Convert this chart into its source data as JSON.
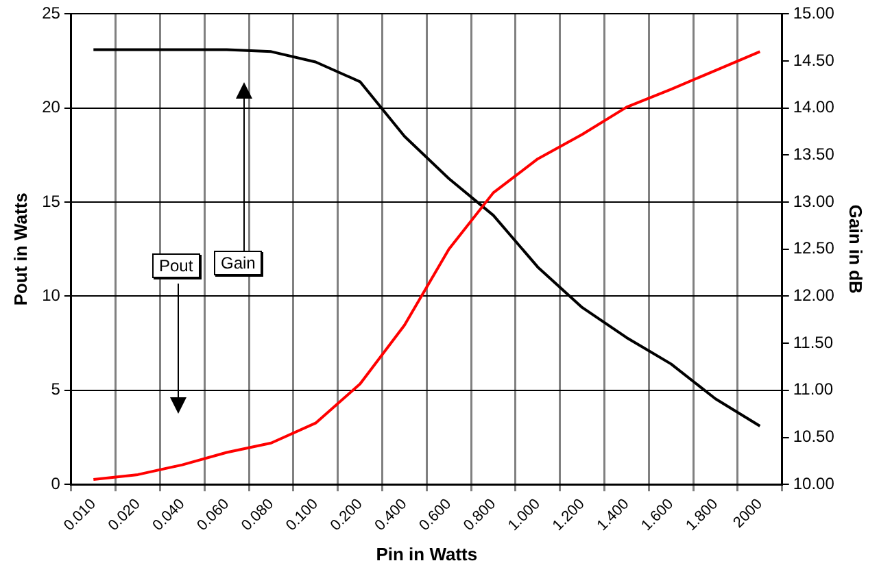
{
  "chart_data": {
    "type": "line",
    "xlabel": "Pin in Watts",
    "ylabel": "Pout in Watts",
    "y2label": "Gain in dB",
    "categories": [
      "0.010",
      "0.020",
      "0.040",
      "0.060",
      "0.080",
      "0.100",
      "0.200",
      "0.400",
      "0.600",
      "0.800",
      "1.000",
      "1.200",
      "1.400",
      "1.600",
      "1.800",
      "2000"
    ],
    "series": [
      {
        "color": "#ff0000",
        "values": [
          0.26,
          0.52,
          1.04,
          1.7,
          2.2,
          3.26,
          5.34,
          8.46,
          12.5,
          15.5,
          17.3,
          18.6,
          20.05,
          21.0,
          22.0,
          23.0
        ]
      },
      {
        "color": "#000000",
        "axis": "y2",
        "values": [
          14.62,
          14.62,
          14.62,
          14.62,
          14.6,
          14.49,
          14.28,
          13.7,
          13.25,
          12.86,
          12.31,
          11.88,
          11.56,
          11.28,
          10.91,
          10.62
        ]
      }
    ],
    "ylim": [
      0,
      25
    ],
    "yticks": [
      0,
      5,
      10,
      15,
      20,
      25
    ],
    "y2lim": [
      10,
      15
    ],
    "y2ticks": [
      {
        "value": 10,
        "label": "10.00"
      },
      {
        "value": 10.5,
        "label": "10.50"
      },
      {
        "value": 11,
        "label": "11.00"
      },
      {
        "value": 11.5,
        "label": "11.50"
      },
      {
        "value": 12,
        "label": "12.00"
      },
      {
        "value": 12.5,
        "label": "12.50"
      },
      {
        "value": 13,
        "label": "13.00"
      },
      {
        "value": 13.5,
        "label": "13.50"
      },
      {
        "value": 14,
        "label": "14.00"
      },
      {
        "value": 14.5,
        "label": "14.50"
      },
      {
        "value": 15,
        "label": "15.00"
      }
    ],
    "grid": true,
    "legend": false,
    "marker": "none",
    "line_style": "solid",
    "annotations": [
      "Pout",
      "Gain"
    ]
  }
}
